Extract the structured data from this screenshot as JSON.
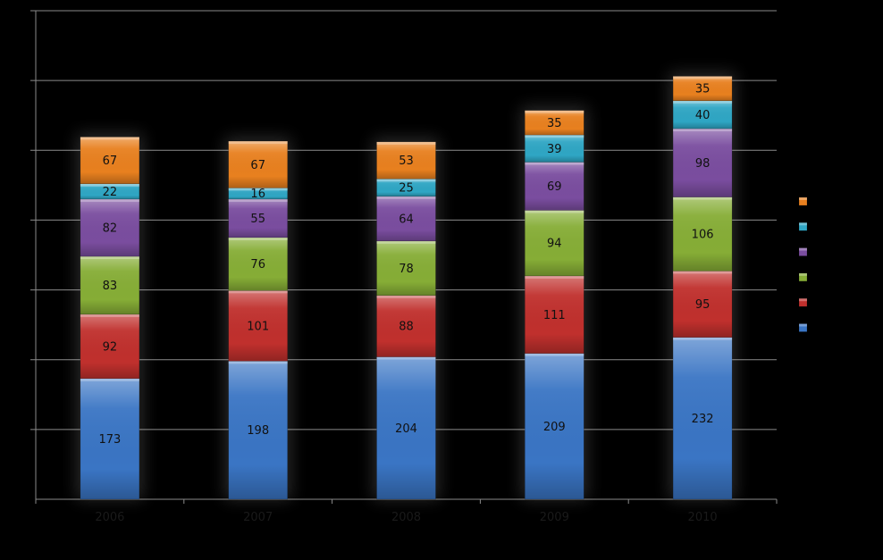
{
  "chart_data": {
    "type": "bar",
    "stacked": true,
    "categories": [
      "2006",
      "2007",
      "2008",
      "2009",
      "2010"
    ],
    "series": [
      {
        "values": [
          173,
          198,
          204,
          209,
          232
        ],
        "color": "#3a75c4"
      },
      {
        "values": [
          92,
          101,
          88,
          111,
          95
        ],
        "color": "#c0302d"
      },
      {
        "values": [
          83,
          76,
          78,
          94,
          106
        ],
        "color": "#86ad36"
      },
      {
        "values": [
          82,
          55,
          64,
          69,
          98
        ],
        "color": "#7a4d9f"
      },
      {
        "values": [
          22,
          16,
          25,
          39,
          40
        ],
        "color": "#2fa6c4"
      },
      {
        "values": [
          67,
          67,
          53,
          35,
          35
        ],
        "color": "#e8801f"
      }
    ],
    "ylim": [
      0,
      700
    ],
    "grid": true,
    "legend_position": "right",
    "background": "#000000"
  }
}
